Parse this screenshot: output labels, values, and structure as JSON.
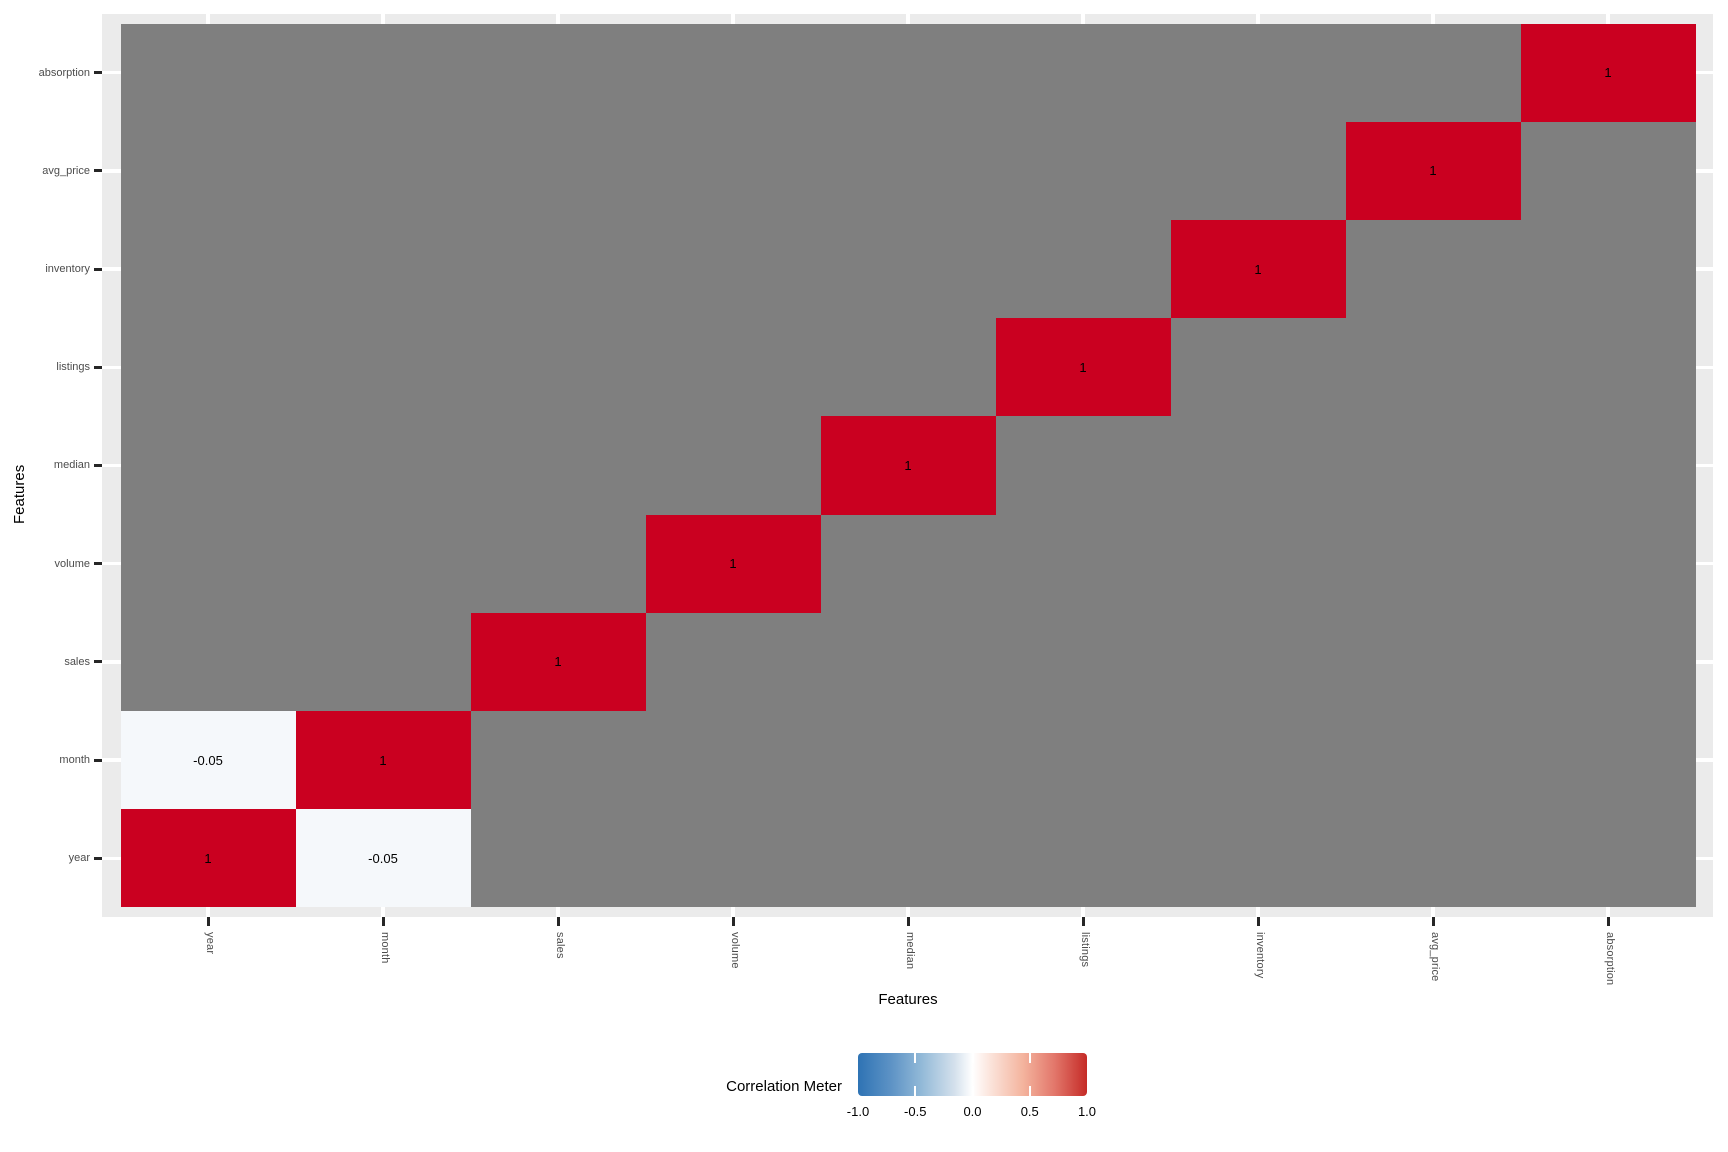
{
  "chart_data": {
    "type": "heatmap",
    "xlabel": "Features",
    "ylabel": "Features",
    "features": [
      "year",
      "month",
      "sales",
      "volume",
      "median",
      "listings",
      "inventory",
      "avg_price",
      "absorption"
    ],
    "matrix_row_order": "bottom-to-top, same order as features",
    "matrix": [
      [
        1,
        -0.05,
        null,
        null,
        null,
        null,
        null,
        null,
        null
      ],
      [
        -0.05,
        1,
        null,
        null,
        null,
        null,
        null,
        null,
        null
      ],
      [
        null,
        null,
        1,
        null,
        null,
        null,
        null,
        null,
        null
      ],
      [
        null,
        null,
        null,
        1,
        null,
        null,
        null,
        null,
        null
      ],
      [
        null,
        null,
        null,
        null,
        1,
        null,
        null,
        null,
        null
      ],
      [
        null,
        null,
        null,
        null,
        null,
        1,
        null,
        null,
        null
      ],
      [
        null,
        null,
        null,
        null,
        null,
        null,
        1,
        null,
        null
      ],
      [
        null,
        null,
        null,
        null,
        null,
        null,
        null,
        1,
        null
      ],
      [
        null,
        null,
        null,
        null,
        null,
        null,
        null,
        null,
        1
      ]
    ],
    "value_range": [
      -1,
      1
    ],
    "legend": {
      "title": "Correlation Meter",
      "tick_labels": [
        "-1.0",
        "-0.5",
        "0.0",
        "0.5",
        "1.0"
      ],
      "range": [
        -1,
        1
      ],
      "position": "bottom-center",
      "orientation": "horizontal"
    },
    "colors": {
      "na_cell": "#7f7f7f",
      "positive_end": "#ca0020",
      "negative_end": "#2f74b3",
      "midpoint": "#ffffff",
      "panel_bg": "#ebebeb",
      "gridline": "#ffffff",
      "axis_tick": "#262626",
      "tick_label": "#4c4c4c",
      "cell_text": "#000000"
    },
    "grid": "white gridlines at category centers, visible in panel margins"
  }
}
